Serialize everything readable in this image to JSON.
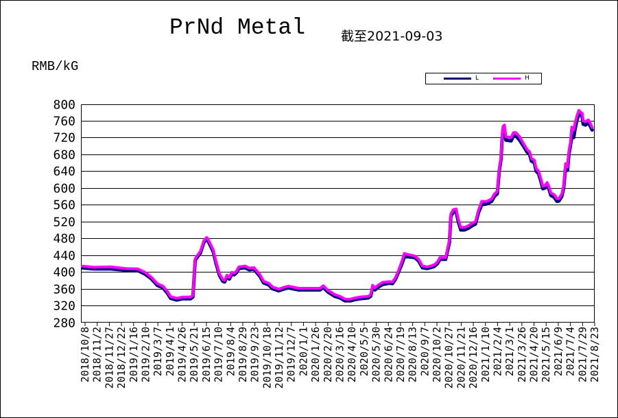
{
  "chart_data": {
    "type": "line",
    "title": "PrNd Metal",
    "subtitle": "截至2021-09-03",
    "ylabel": "RMB/kG",
    "xlabel": "",
    "ylim": [
      280,
      800
    ],
    "yticks": [
      280,
      320,
      360,
      400,
      440,
      480,
      520,
      560,
      600,
      640,
      680,
      720,
      760,
      800
    ],
    "grid": "horizontal",
    "legend_placement": "top-right",
    "x_tick_labels": [
      "2018/10/8",
      "2018/11/2",
      "2018/11/27",
      "2018/12/22",
      "2019/1/16",
      "2019/2/10",
      "2019/3/7",
      "2019/4/1",
      "2019/4/26",
      "2019/5/21",
      "2019/6/15",
      "2019/7/10",
      "2019/8/4",
      "2019/8/29",
      "2019/9/23",
      "2019/10/18",
      "2019/11/12",
      "2019/12/7",
      "2020/1/1",
      "2020/1/26",
      "2020/2/20",
      "2020/3/16",
      "2020/4/10",
      "2020/5/5",
      "2020/5/30",
      "2020/6/24",
      "2020/7/19",
      "2020/8/13",
      "2020/9/7",
      "2020/10/2",
      "2020/10/27",
      "2020/11/21",
      "2020/12/16",
      "2021/1/10",
      "2021/2/4",
      "2021/3/1",
      "2021/3/26",
      "2021/4/20",
      "2021/5/15",
      "2021/6/9",
      "2021/7/4",
      "2021/7/29",
      "2021/8/23"
    ],
    "x_range": [
      "2018-10-08",
      "2021-09-03"
    ],
    "series": [
      {
        "name": "L",
        "color": "#000080",
        "points": [
          [
            "2018-10-08",
            410
          ],
          [
            "2018-11-05",
            407
          ],
          [
            "2018-12-10",
            407
          ],
          [
            "2019-01-10",
            404
          ],
          [
            "2019-02-05",
            403
          ],
          [
            "2019-02-20",
            395
          ],
          [
            "2019-03-05",
            384
          ],
          [
            "2019-03-18",
            368
          ],
          [
            "2019-03-30",
            362
          ],
          [
            "2019-04-08",
            350
          ],
          [
            "2019-04-15",
            337
          ],
          [
            "2019-04-28",
            333
          ],
          [
            "2019-05-10",
            336
          ],
          [
            "2019-05-27",
            336
          ],
          [
            "2019-06-01",
            340
          ],
          [
            "2019-06-06",
            428
          ],
          [
            "2019-06-11",
            436
          ],
          [
            "2019-06-17",
            445
          ],
          [
            "2019-06-24",
            470
          ],
          [
            "2019-06-30",
            478
          ],
          [
            "2019-07-03",
            474
          ],
          [
            "2019-07-09",
            460
          ],
          [
            "2019-07-14",
            448
          ],
          [
            "2019-07-20",
            420
          ],
          [
            "2019-07-27",
            392
          ],
          [
            "2019-08-03",
            378
          ],
          [
            "2019-08-07",
            376
          ],
          [
            "2019-08-12",
            388
          ],
          [
            "2019-08-17",
            383
          ],
          [
            "2019-08-22",
            395
          ],
          [
            "2019-08-27",
            393
          ],
          [
            "2019-09-01",
            398
          ],
          [
            "2019-09-06",
            408
          ],
          [
            "2019-09-19",
            410
          ],
          [
            "2019-09-28",
            405
          ],
          [
            "2019-10-08",
            406
          ],
          [
            "2019-10-20",
            390
          ],
          [
            "2019-10-28",
            374
          ],
          [
            "2019-11-08",
            369
          ],
          [
            "2019-11-16",
            360
          ],
          [
            "2019-11-29",
            355
          ],
          [
            "2019-12-12",
            360
          ],
          [
            "2019-12-20",
            362
          ],
          [
            "2020-01-10",
            357
          ],
          [
            "2020-02-24",
            357
          ],
          [
            "2020-03-02",
            363
          ],
          [
            "2020-03-12",
            352
          ],
          [
            "2020-03-26",
            342
          ],
          [
            "2020-04-06",
            338
          ],
          [
            "2020-04-17",
            331
          ],
          [
            "2020-04-28",
            331
          ],
          [
            "2020-05-08",
            334
          ],
          [
            "2020-05-18",
            336
          ],
          [
            "2020-06-05",
            338
          ],
          [
            "2020-06-10",
            342
          ],
          [
            "2020-06-14",
            362
          ],
          [
            "2020-06-19",
            357
          ],
          [
            "2020-06-25",
            363
          ],
          [
            "2020-07-05",
            370
          ],
          [
            "2020-07-19",
            373
          ],
          [
            "2020-07-26",
            372
          ],
          [
            "2020-08-01",
            382
          ],
          [
            "2020-08-08",
            400
          ],
          [
            "2020-08-15",
            420
          ],
          [
            "2020-08-20",
            436
          ],
          [
            "2020-08-29",
            436
          ],
          [
            "2020-09-11",
            434
          ],
          [
            "2020-09-19",
            426
          ],
          [
            "2020-09-27",
            410
          ],
          [
            "2020-10-07",
            408
          ],
          [
            "2020-10-14",
            410
          ],
          [
            "2020-10-22",
            413
          ],
          [
            "2020-10-29",
            420
          ],
          [
            "2020-11-03",
            430
          ],
          [
            "2020-11-15",
            430
          ],
          [
            "2020-11-23",
            470
          ],
          [
            "2020-11-26",
            532
          ],
          [
            "2020-12-01",
            542
          ],
          [
            "2020-12-07",
            544
          ],
          [
            "2020-12-12",
            518
          ],
          [
            "2020-12-17",
            500
          ],
          [
            "2020-12-25",
            500
          ],
          [
            "2021-01-02",
            504
          ],
          [
            "2021-01-10",
            510
          ],
          [
            "2021-01-17",
            514
          ],
          [
            "2021-01-23",
            540
          ],
          [
            "2021-01-30",
            560
          ],
          [
            "2021-02-10",
            562
          ],
          [
            "2021-02-20",
            568
          ],
          [
            "2021-02-26",
            580
          ],
          [
            "2021-03-04",
            586
          ],
          [
            "2021-03-08",
            640
          ],
          [
            "2021-03-12",
            670
          ],
          [
            "2021-03-14",
            718
          ],
          [
            "2021-03-16",
            738
          ],
          [
            "2021-03-19",
            742
          ],
          [
            "2021-03-22",
            714
          ],
          [
            "2021-04-02",
            712
          ],
          [
            "2021-04-07",
            724
          ],
          [
            "2021-04-12",
            724
          ],
          [
            "2021-04-20",
            714
          ],
          [
            "2021-04-28",
            700
          ],
          [
            "2021-05-06",
            685
          ],
          [
            "2021-05-11",
            680
          ],
          [
            "2021-05-15",
            664
          ],
          [
            "2021-05-21",
            660
          ],
          [
            "2021-05-25",
            640
          ],
          [
            "2021-05-30",
            634
          ],
          [
            "2021-06-04",
            615
          ],
          [
            "2021-06-08",
            598
          ],
          [
            "2021-06-13",
            600
          ],
          [
            "2021-06-17",
            607
          ],
          [
            "2021-06-21",
            597
          ],
          [
            "2021-06-25",
            582
          ],
          [
            "2021-07-02",
            578
          ],
          [
            "2021-07-08",
            568
          ],
          [
            "2021-07-12",
            569
          ],
          [
            "2021-07-18",
            580
          ],
          [
            "2021-07-22",
            600
          ],
          [
            "2021-07-26",
            650
          ],
          [
            "2021-07-30",
            642
          ],
          [
            "2021-08-02",
            680
          ],
          [
            "2021-08-05",
            700
          ],
          [
            "2021-08-08",
            720
          ],
          [
            "2021-08-12",
            720
          ],
          [
            "2021-08-15",
            740
          ],
          [
            "2021-08-19",
            762
          ],
          [
            "2021-08-23",
            775
          ],
          [
            "2021-08-27",
            774
          ],
          [
            "2021-08-30",
            770
          ],
          [
            "2021-09-01",
            752
          ],
          [
            "2021-09-06",
            750
          ],
          [
            "2021-09-12",
            755
          ],
          [
            "2021-09-16",
            747
          ],
          [
            "2021-09-20",
            738
          ]
        ]
      },
      {
        "name": "H",
        "color": "#ff00ff",
        "points": [
          [
            "2018-10-08",
            414
          ],
          [
            "2018-11-05",
            411
          ],
          [
            "2018-12-10",
            412
          ],
          [
            "2019-01-10",
            408
          ],
          [
            "2019-02-05",
            407
          ],
          [
            "2019-02-20",
            399
          ],
          [
            "2019-03-05",
            388
          ],
          [
            "2019-03-18",
            372
          ],
          [
            "2019-03-30",
            366
          ],
          [
            "2019-04-08",
            354
          ],
          [
            "2019-04-15",
            341
          ],
          [
            "2019-04-28",
            337
          ],
          [
            "2019-05-10",
            340
          ],
          [
            "2019-05-27",
            340
          ],
          [
            "2019-06-01",
            344
          ],
          [
            "2019-06-06",
            432
          ],
          [
            "2019-06-11",
            440
          ],
          [
            "2019-06-17",
            449
          ],
          [
            "2019-06-24",
            474
          ],
          [
            "2019-06-30",
            482
          ],
          [
            "2019-07-03",
            478
          ],
          [
            "2019-07-09",
            464
          ],
          [
            "2019-07-14",
            452
          ],
          [
            "2019-07-20",
            424
          ],
          [
            "2019-07-27",
            396
          ],
          [
            "2019-08-03",
            382
          ],
          [
            "2019-08-07",
            380
          ],
          [
            "2019-08-12",
            392
          ],
          [
            "2019-08-17",
            387
          ],
          [
            "2019-08-22",
            399
          ],
          [
            "2019-08-27",
            397
          ],
          [
            "2019-09-01",
            402
          ],
          [
            "2019-09-06",
            412
          ],
          [
            "2019-09-19",
            414
          ],
          [
            "2019-09-28",
            409
          ],
          [
            "2019-10-08",
            410
          ],
          [
            "2019-10-20",
            394
          ],
          [
            "2019-10-28",
            378
          ],
          [
            "2019-11-08",
            373
          ],
          [
            "2019-11-16",
            364
          ],
          [
            "2019-11-29",
            359
          ],
          [
            "2019-12-12",
            364
          ],
          [
            "2019-12-20",
            366
          ],
          [
            "2020-01-10",
            361
          ],
          [
            "2020-02-24",
            361
          ],
          [
            "2020-03-02",
            367
          ],
          [
            "2020-03-12",
            356
          ],
          [
            "2020-03-26",
            346
          ],
          [
            "2020-04-06",
            342
          ],
          [
            "2020-04-17",
            335
          ],
          [
            "2020-04-28",
            335
          ],
          [
            "2020-05-08",
            338
          ],
          [
            "2020-05-18",
            340
          ],
          [
            "2020-06-05",
            342
          ],
          [
            "2020-06-10",
            346
          ],
          [
            "2020-06-14",
            368
          ],
          [
            "2020-06-19",
            362
          ],
          [
            "2020-06-25",
            368
          ],
          [
            "2020-07-05",
            375
          ],
          [
            "2020-07-19",
            377
          ],
          [
            "2020-07-26",
            376
          ],
          [
            "2020-08-01",
            386
          ],
          [
            "2020-08-08",
            404
          ],
          [
            "2020-08-15",
            426
          ],
          [
            "2020-08-20",
            444
          ],
          [
            "2020-08-29",
            441
          ],
          [
            "2020-09-11",
            438
          ],
          [
            "2020-09-19",
            430
          ],
          [
            "2020-09-27",
            414
          ],
          [
            "2020-10-07",
            412
          ],
          [
            "2020-10-14",
            414
          ],
          [
            "2020-10-22",
            417
          ],
          [
            "2020-10-29",
            424
          ],
          [
            "2020-11-03",
            434
          ],
          [
            "2020-11-15",
            434
          ],
          [
            "2020-11-23",
            476
          ],
          [
            "2020-11-26",
            538
          ],
          [
            "2020-12-01",
            548
          ],
          [
            "2020-12-07",
            550
          ],
          [
            "2020-12-12",
            524
          ],
          [
            "2020-12-17",
            506
          ],
          [
            "2020-12-25",
            506
          ],
          [
            "2021-01-02",
            510
          ],
          [
            "2021-01-10",
            516
          ],
          [
            "2021-01-17",
            520
          ],
          [
            "2021-01-23",
            546
          ],
          [
            "2021-01-30",
            568
          ],
          [
            "2021-02-10",
            568
          ],
          [
            "2021-02-20",
            574
          ],
          [
            "2021-02-26",
            586
          ],
          [
            "2021-03-04",
            592
          ],
          [
            "2021-03-08",
            646
          ],
          [
            "2021-03-12",
            676
          ],
          [
            "2021-03-14",
            726
          ],
          [
            "2021-03-16",
            746
          ],
          [
            "2021-03-19",
            750
          ],
          [
            "2021-03-22",
            722
          ],
          [
            "2021-04-02",
            720
          ],
          [
            "2021-04-07",
            732
          ],
          [
            "2021-04-12",
            732
          ],
          [
            "2021-04-20",
            722
          ],
          [
            "2021-04-28",
            706
          ],
          [
            "2021-05-06",
            691
          ],
          [
            "2021-05-11",
            686
          ],
          [
            "2021-05-15",
            670
          ],
          [
            "2021-05-21",
            666
          ],
          [
            "2021-05-25",
            646
          ],
          [
            "2021-05-30",
            640
          ],
          [
            "2021-06-04",
            621
          ],
          [
            "2021-06-08",
            604
          ],
          [
            "2021-06-13",
            606
          ],
          [
            "2021-06-17",
            613
          ],
          [
            "2021-06-21",
            603
          ],
          [
            "2021-06-25",
            588
          ],
          [
            "2021-07-02",
            584
          ],
          [
            "2021-07-08",
            574
          ],
          [
            "2021-07-12",
            575
          ],
          [
            "2021-07-18",
            586
          ],
          [
            "2021-07-22",
            606
          ],
          [
            "2021-07-26",
            658
          ],
          [
            "2021-07-30",
            650
          ],
          [
            "2021-08-02",
            688
          ],
          [
            "2021-08-05",
            708
          ],
          [
            "2021-08-08",
            745
          ],
          [
            "2021-08-12",
            738
          ],
          [
            "2021-08-15",
            755
          ],
          [
            "2021-08-19",
            772
          ],
          [
            "2021-08-23",
            785
          ],
          [
            "2021-08-27",
            780
          ],
          [
            "2021-08-30",
            778
          ],
          [
            "2021-09-01",
            760
          ],
          [
            "2021-09-06",
            758
          ],
          [
            "2021-09-12",
            762
          ],
          [
            "2021-09-16",
            754
          ],
          [
            "2021-09-20",
            744
          ]
        ]
      }
    ]
  }
}
